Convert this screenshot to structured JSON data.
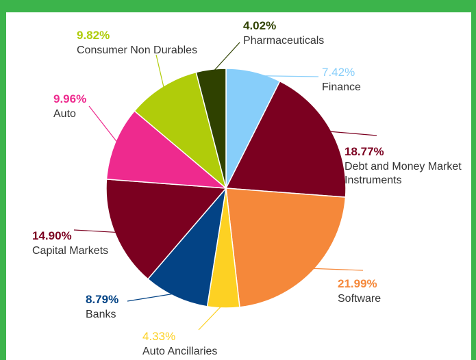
{
  "chart_data": {
    "type": "pie",
    "categories": [
      "Finance",
      "Debt and Money Market Instruments",
      "Software",
      "Auto Ancillaries",
      "Banks",
      "Capital Markets",
      "Auto",
      "Consumer Non Durables",
      "Pharmaceuticals"
    ],
    "values": [
      7.42,
      18.77,
      21.99,
      4.33,
      8.79,
      14.9,
      9.96,
      9.82,
      4.02
    ],
    "value_labels": [
      "7.42%",
      "18.77%",
      "21.99%",
      "4.33%",
      "8.79%",
      "14.90%",
      "9.96%",
      "9.82%",
      "4.02%"
    ],
    "colors": [
      "#87cefa",
      "#7b0020",
      "#f5883a",
      "#fdd123",
      "#034385",
      "#7b0020",
      "#ee2a8e",
      "#b0cc0a",
      "#2f4100"
    ]
  }
}
